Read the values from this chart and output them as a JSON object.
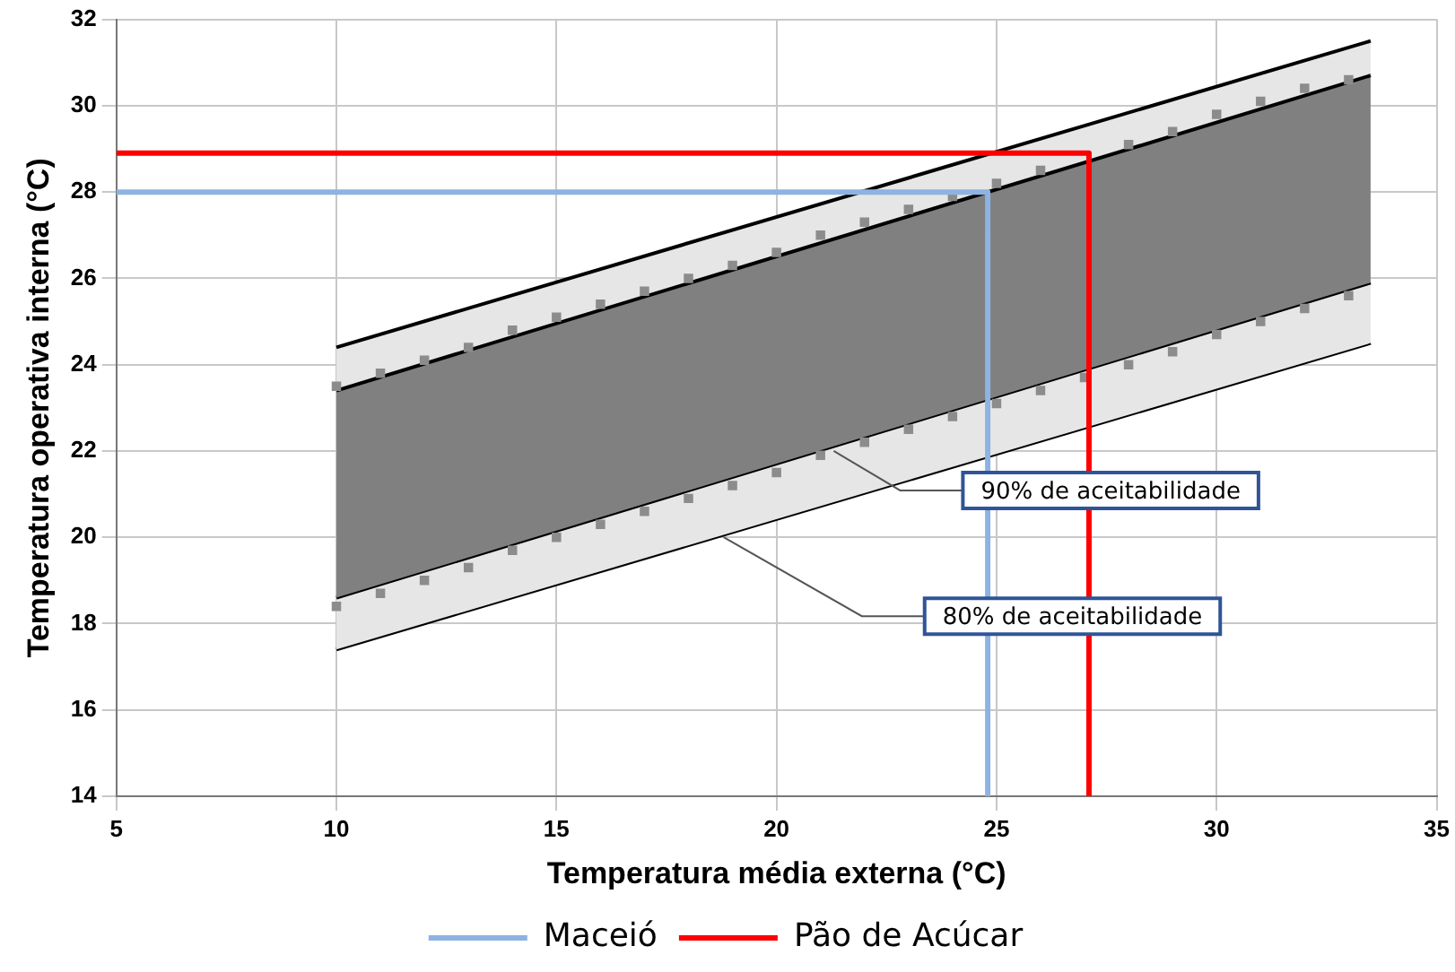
{
  "chart_data": {
    "type": "line",
    "xlabel": "Temperatura média externa (°C)",
    "ylabel": "Temperatura operativa interna (°C)",
    "xlim": [
      5,
      35
    ],
    "xticks": [
      5,
      10,
      15,
      20,
      25,
      30,
      35
    ],
    "ylim": [
      14,
      32
    ],
    "yticks": [
      14,
      16,
      18,
      20,
      22,
      24,
      26,
      28,
      30,
      32
    ],
    "grid": true,
    "legend": "bottom",
    "series": [
      {
        "color": "#000000",
        "x": [
          10,
          33.5
        ],
        "values": [
          17.4,
          24.5
        ]
      },
      {
        "type": "area",
        "color": "#e6e6e6",
        "x": [
          10,
          33.5
        ],
        "values": [
          24.4,
          31.5
        ]
      },
      {
        "color": "#000000",
        "x": [
          10,
          33.5
        ],
        "values": [
          18.6,
          25.9
        ]
      },
      {
        "type": "area",
        "color": "#808080",
        "x": [
          10,
          33.5
        ],
        "values": [
          23.4,
          30.7
        ]
      },
      {
        "type": "scatter",
        "marker": "square",
        "color": "#8c8c8c",
        "x": [
          10,
          11,
          12,
          13,
          14,
          15,
          16,
          17,
          18,
          19,
          20,
          21,
          22,
          23,
          24,
          25,
          26,
          27,
          28,
          29,
          30,
          31,
          32,
          33
        ],
        "values": [
          18.4,
          18.7,
          19.0,
          19.3,
          19.7,
          20.0,
          20.3,
          20.6,
          20.9,
          21.2,
          21.5,
          21.9,
          22.2,
          22.5,
          22.8,
          23.1,
          23.4,
          23.7,
          24.0,
          24.3,
          24.7,
          25.0,
          25.3,
          25.6
        ]
      },
      {
        "type": "scatter",
        "marker": "square",
        "color": "#8c8c8c",
        "x": [
          10,
          11,
          12,
          13,
          14,
          15,
          16,
          17,
          18,
          19,
          20,
          21,
          22,
          23,
          24,
          25,
          26,
          27,
          28,
          29,
          30,
          31,
          32,
          33
        ],
        "values": [
          23.5,
          23.8,
          24.1,
          24.4,
          24.8,
          25.1,
          25.4,
          25.7,
          26.0,
          26.3,
          26.6,
          27.0,
          27.3,
          27.6,
          27.9,
          28.2,
          28.5,
          null,
          29.1,
          29.4,
          29.8,
          30.1,
          30.4,
          30.6
        ]
      },
      {
        "type": "line",
        "name": "Maceió",
        "color": "#8db3e2",
        "x": [
          5,
          24.8,
          24.8
        ],
        "values": [
          28,
          28,
          14
        ]
      },
      {
        "type": "line",
        "name": "Pão de Acúcar",
        "color": "#ff0000",
        "x": [
          5,
          27.1,
          27.1
        ],
        "values": [
          28.9,
          28.9,
          14
        ]
      }
    ],
    "annotations": [
      {
        "text": "90% de aceitabilidade",
        "x": 21.3,
        "y": 22.0
      },
      {
        "text": "80% de aceitabilidade",
        "x": 18.8,
        "y": 20.0
      }
    ]
  }
}
